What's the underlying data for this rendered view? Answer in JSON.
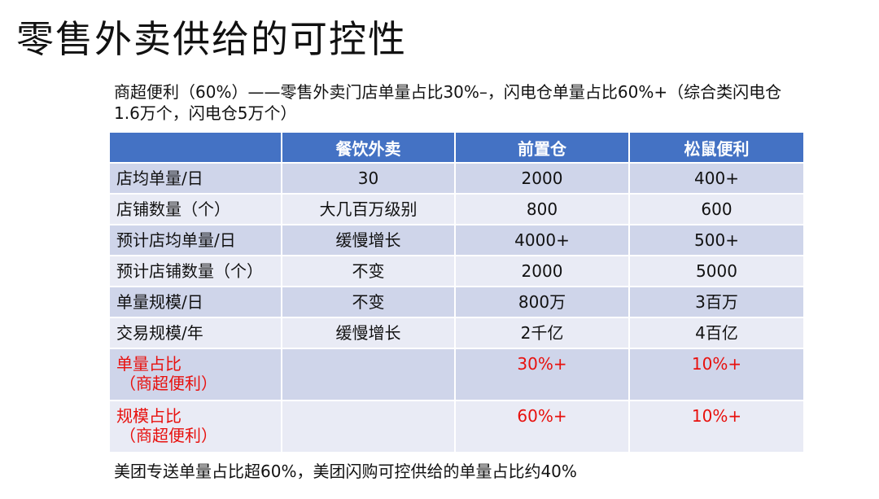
{
  "slide": {
    "title": "零售外卖供给的可控性",
    "intro": "商超便利（60%）——零售外卖门店单量占比30%–，闪电仓单量占比60%+（综合类闪电仓1.6万个，闪电仓5万个）",
    "footer": "美团专送单量占比超60%，美团闪购可控供给的单量占比约40%"
  },
  "table": {
    "headers": [
      "",
      "餐饮外卖",
      "前置仓",
      "松鼠便利"
    ],
    "rows": [
      {
        "label": "店均单量/日",
        "values": [
          "30",
          "2000",
          "400+"
        ]
      },
      {
        "label": "店铺数量（个）",
        "values": [
          "大几百万级别",
          "800",
          "600"
        ]
      },
      {
        "label": "预计店均单量/日",
        "values": [
          "缓慢增长",
          "4000+",
          "500+"
        ]
      },
      {
        "label": "预计店铺数量（个）",
        "values": [
          "不变",
          "2000",
          "5000"
        ]
      },
      {
        "label": "单量规模/日",
        "values": [
          "不变",
          "800万",
          "3百万"
        ]
      },
      {
        "label": "交易规模/年",
        "values": [
          "缓慢增长",
          "2千亿",
          "4百亿"
        ]
      },
      {
        "label": "单量占比",
        "sublabel": "（商超便利）",
        "values": [
          "",
          "30%+",
          "10%+"
        ]
      },
      {
        "label": "规模占比",
        "sublabel": "（商超便利）",
        "values": [
          "",
          "60%+",
          "10%+"
        ]
      }
    ]
  },
  "colors": {
    "header_bg": "#4472c4",
    "band_dark": "#cfd5ea",
    "band_light": "#e9ebf5",
    "highlight_text": "#e8100d"
  }
}
